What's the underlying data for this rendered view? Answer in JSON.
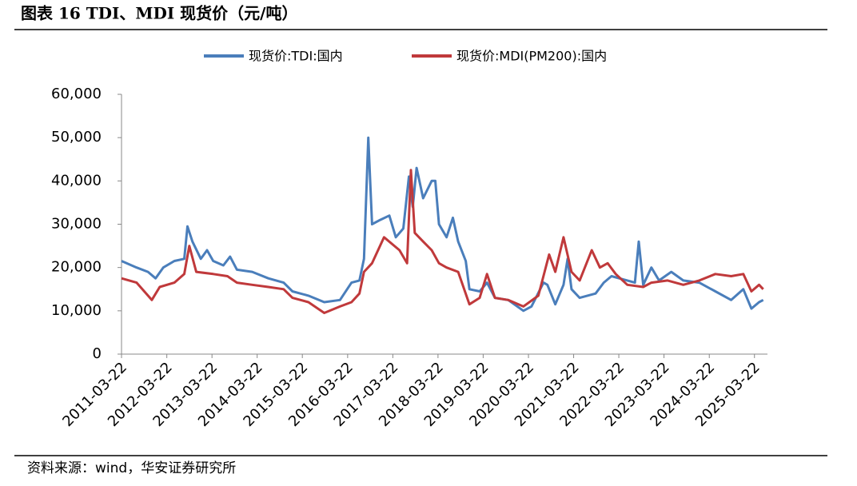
{
  "chart_data": {
    "type": "line",
    "title": "图表 16 TDI、MDI 现货价（元/吨）",
    "source": "资料来源：wind，华安证券研究所",
    "legend": "top",
    "ylim": [
      0,
      60000
    ],
    "yticks": [
      0,
      {
        "value": 10000,
        "label": "10,000"
      },
      {
        "value": 20000,
        "label": "20,000"
      },
      {
        "value": 30000,
        "label": "30,000"
      },
      {
        "value": 40000,
        "label": "40,000"
      },
      {
        "value": 50000,
        "label": "50,000"
      },
      {
        "value": 60000,
        "label": "60,000"
      }
    ],
    "xlim": [
      "2011-03-22",
      "2025-07-05"
    ],
    "xticks": [
      "2011-03-22",
      "2012-03-22",
      "2013-03-22",
      "2014-03-22",
      "2015-03-22",
      "2016-03-22",
      "2017-03-22",
      "2018-03-22",
      "2019-03-22",
      "2020-03-22",
      "2021-03-22",
      "2022-03-22",
      "2023-03-22",
      "2024-03-22",
      "2025-03-22"
    ],
    "series": [
      {
        "name": "现货价:TDI:国内",
        "color": "#4a7ebb",
        "x": [
          "2011-03-22",
          "2011-07-22",
          "2011-10-22",
          "2011-12-22",
          "2012-02-22",
          "2012-05-22",
          "2012-08-10",
          "2012-09-05",
          "2012-10-15",
          "2012-12-22",
          "2013-02-10",
          "2013-04-01",
          "2013-06-22",
          "2013-08-15",
          "2013-10-10",
          "2014-02-10",
          "2014-06-20",
          "2014-10-22",
          "2015-01-01",
          "2015-05-10",
          "2015-09-15",
          "2016-01-20",
          "2016-04-22",
          "2016-06-25",
          "2016-08-01",
          "2016-09-05",
          "2016-10-05",
          "2016-12-10",
          "2017-02-22",
          "2017-04-15",
          "2017-06-15",
          "2017-07-30",
          "2017-08-30",
          "2017-09-30",
          "2017-11-22",
          "2018-01-30",
          "2018-02-28",
          "2018-03-30",
          "2018-05-30",
          "2018-07-20",
          "2018-09-01",
          "2018-11-01",
          "2018-12-01",
          "2019-02-22",
          "2019-04-22",
          "2019-06-25",
          "2019-10-10",
          "2020-02-10",
          "2020-04-15",
          "2020-07-22",
          "2020-08-22",
          "2020-10-25",
          "2020-12-30",
          "2021-02-01",
          "2021-03-05",
          "2021-05-10",
          "2021-09-15",
          "2021-11-20",
          "2022-01-22",
          "2022-05-30",
          "2022-07-30",
          "2022-08-30",
          "2022-10-05",
          "2022-12-10",
          "2023-02-10",
          "2023-05-20",
          "2023-08-25",
          "2024-01-01",
          "2024-05-10",
          "2024-09-15",
          "2024-12-22",
          "2025-02-25",
          "2025-04-28",
          "2025-06-01"
        ],
        "values": [
          21500,
          20000,
          19000,
          17500,
          20000,
          21500,
          22000,
          29500,
          26000,
          22000,
          24000,
          21500,
          20500,
          22500,
          19500,
          19000,
          17500,
          16500,
          14500,
          13500,
          12000,
          12500,
          16500,
          17000,
          22000,
          50000,
          30000,
          31000,
          32000,
          27000,
          29000,
          41000,
          34000,
          43000,
          36000,
          40000,
          40000,
          30000,
          27000,
          31500,
          26000,
          21500,
          15000,
          14500,
          16500,
          13000,
          12500,
          10000,
          11000,
          16500,
          16000,
          11500,
          16000,
          22000,
          15000,
          13000,
          14000,
          16500,
          18000,
          17000,
          16500,
          26000,
          16000,
          20000,
          17000,
          19000,
          17000,
          16500,
          14500,
          12500,
          15000,
          10500,
          12000,
          12500
        ]
      },
      {
        "name": "现货价:MDI(PM200):国内",
        "color": "#c0393b",
        "x": [
          "2011-03-22",
          "2011-07-22",
          "2011-11-22",
          "2012-01-25",
          "2012-05-22",
          "2012-08-10",
          "2012-09-20",
          "2012-11-15",
          "2013-04-01",
          "2013-07-25",
          "2013-10-10",
          "2014-02-10",
          "2014-06-20",
          "2014-10-22",
          "2015-01-01",
          "2015-05-10",
          "2015-09-15",
          "2016-01-20",
          "2016-04-22",
          "2016-06-25",
          "2016-08-01",
          "2016-10-05",
          "2017-01-10",
          "2017-05-15",
          "2017-07-15",
          "2017-08-15",
          "2017-09-15",
          "2017-11-22",
          "2018-01-30",
          "2018-03-30",
          "2018-05-30",
          "2018-09-01",
          "2018-12-01",
          "2019-02-22",
          "2019-04-22",
          "2019-06-25",
          "2019-10-10",
          "2020-02-10",
          "2020-06-10",
          "2020-09-05",
          "2020-10-25",
          "2020-12-30",
          "2021-03-05",
          "2021-05-10",
          "2021-08-15",
          "2021-10-20",
          "2021-12-22",
          "2022-02-25",
          "2022-05-30",
          "2022-10-05",
          "2022-12-10",
          "2023-04-20",
          "2023-08-25",
          "2024-01-01",
          "2024-05-10",
          "2024-09-15",
          "2024-12-22",
          "2025-02-25",
          "2025-04-28",
          "2025-06-01"
        ],
        "values": [
          17500,
          16500,
          12500,
          15500,
          16500,
          18500,
          25000,
          19000,
          18500,
          18000,
          16500,
          16000,
          15500,
          15000,
          13000,
          12000,
          9500,
          11000,
          12000,
          14000,
          19000,
          21000,
          27000,
          24000,
          21000,
          42500,
          28000,
          26000,
          24000,
          21000,
          20000,
          19000,
          11500,
          13000,
          18500,
          13000,
          12500,
          11000,
          13500,
          23000,
          19000,
          27000,
          19000,
          17000,
          24000,
          20000,
          21000,
          18500,
          16000,
          15500,
          16500,
          17000,
          16000,
          17000,
          18500,
          18000,
          18500,
          14500,
          16000,
          15000
        ]
      }
    ]
  }
}
